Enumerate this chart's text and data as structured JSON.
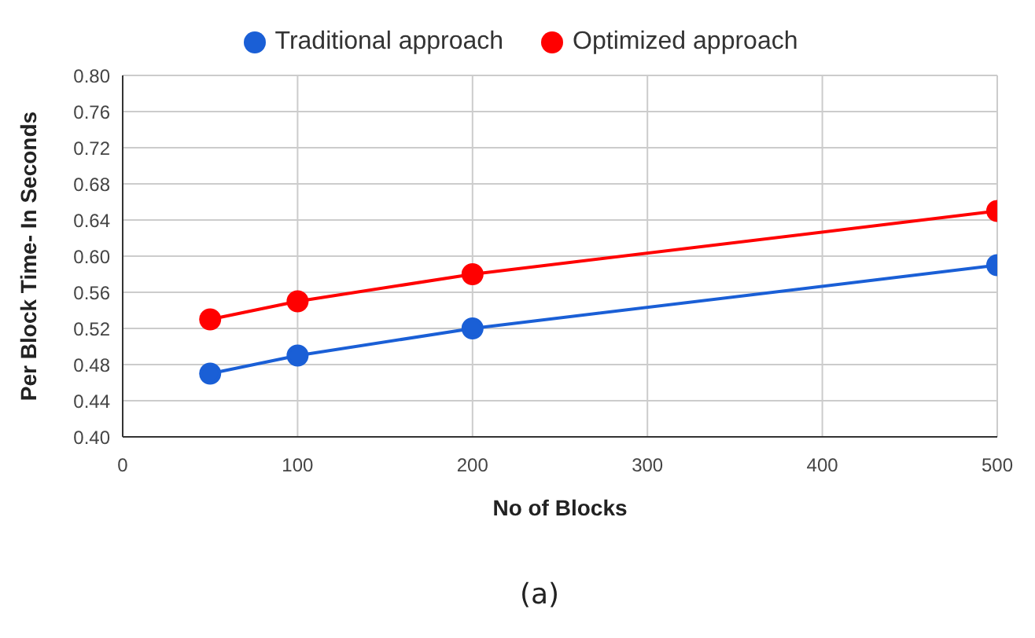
{
  "chart_data": {
    "type": "line",
    "xlabel": "No of Blocks",
    "ylabel": "Per Block Time- In Seconds",
    "x": [
      50,
      100,
      200,
      500
    ],
    "series": [
      {
        "name": "Traditional approach",
        "color": "#1a5fd6",
        "values": [
          0.47,
          0.49,
          0.52,
          0.59
        ]
      },
      {
        "name": "Optimized approach",
        "color": "#ff0000",
        "values": [
          0.53,
          0.55,
          0.58,
          0.65
        ]
      }
    ],
    "xlim": [
      0,
      500
    ],
    "xticks": [
      0,
      100,
      200,
      300,
      400,
      500
    ],
    "ylim": [
      0.4,
      0.8
    ],
    "yticks": [
      {
        "value": 0.4,
        "label": "0.40"
      },
      {
        "value": 0.44,
        "label": "0.44"
      },
      {
        "value": 0.48,
        "label": "0.48"
      },
      {
        "value": 0.52,
        "label": "0.52"
      },
      {
        "value": 0.56,
        "label": "0.56"
      },
      {
        "value": 0.6,
        "label": "0.60"
      },
      {
        "value": 0.64,
        "label": "0.64"
      },
      {
        "value": 0.68,
        "label": "0.68"
      },
      {
        "value": 0.72,
        "label": "0.72"
      },
      {
        "value": 0.76,
        "label": "0.76"
      },
      {
        "value": 0.8,
        "label": "0.80"
      }
    ],
    "grid": true,
    "legend": "top",
    "marker": "circle",
    "line_style": "solid",
    "annotations": [
      "(a)"
    ]
  }
}
